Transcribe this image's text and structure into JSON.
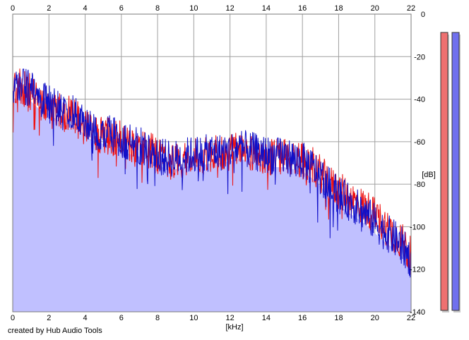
{
  "chart_data": {
    "type": "area",
    "xlabel": "[kHz]",
    "ylabel": "[dB]",
    "xlim": [
      0,
      22
    ],
    "ylim": [
      -140,
      0
    ],
    "x_ticks": [
      0,
      2,
      4,
      6,
      8,
      10,
      12,
      14,
      16,
      18,
      20,
      22
    ],
    "y_ticks": [
      0,
      -20,
      -40,
      -60,
      -80,
      -100,
      -120,
      -140
    ],
    "grid": true,
    "colors": {
      "background": "#ffffff",
      "plot_background": "#ffffff",
      "grid": "#a0a0a0",
      "area_fill": "#c0c0ff",
      "left_channel": "#ee1111",
      "right_channel": "#1010c8"
    },
    "series": [
      {
        "color": "#ee1111",
        "x": [
          0.0,
          0.5,
          1.0,
          1.5,
          2.0,
          2.5,
          3.0,
          3.5,
          4.0,
          4.5,
          5.0,
          5.5,
          6.0,
          6.5,
          7.0,
          7.5,
          8.0,
          8.5,
          9.0,
          9.5,
          10.0,
          10.5,
          11.0,
          11.5,
          12.0,
          12.5,
          13.0,
          13.5,
          14.0,
          14.5,
          15.0,
          15.5,
          16.0,
          16.5,
          17.0,
          17.5,
          18.0,
          18.5,
          19.0,
          19.5,
          20.0,
          20.5,
          21.0,
          21.5,
          22.0
        ],
        "y": [
          -36,
          -33,
          -36,
          -40,
          -42,
          -45,
          -46,
          -48,
          -52,
          -55,
          -56,
          -57,
          -58,
          -60,
          -62,
          -63,
          -66,
          -68,
          -68,
          -67,
          -66,
          -66,
          -65,
          -65,
          -64,
          -63,
          -64,
          -65,
          -66,
          -66,
          -66,
          -67,
          -68,
          -70,
          -74,
          -79,
          -82,
          -85,
          -88,
          -90,
          -94,
          -98,
          -102,
          -106,
          -113
        ]
      },
      {
        "color": "#1010c8",
        "x": [
          0.0,
          0.5,
          1.0,
          1.5,
          2.0,
          2.5,
          3.0,
          3.5,
          4.0,
          4.5,
          5.0,
          5.5,
          6.0,
          6.5,
          7.0,
          7.5,
          8.0,
          8.5,
          9.0,
          9.5,
          10.0,
          10.5,
          11.0,
          11.5,
          12.0,
          12.5,
          13.0,
          13.5,
          14.0,
          14.5,
          15.0,
          15.5,
          16.0,
          16.5,
          17.0,
          17.5,
          18.0,
          18.5,
          19.0,
          19.5,
          20.0,
          20.5,
          21.0,
          21.5,
          22.0
        ],
        "y": [
          -35,
          -32,
          -35,
          -39,
          -41,
          -44,
          -45,
          -47,
          -51,
          -54,
          -55,
          -56,
          -58,
          -60,
          -61,
          -62,
          -65,
          -67,
          -67,
          -66,
          -65,
          -65,
          -64,
          -64,
          -63,
          -62,
          -63,
          -64,
          -65,
          -66,
          -66,
          -67,
          -68,
          -71,
          -75,
          -80,
          -84,
          -87,
          -90,
          -93,
          -97,
          -101,
          -104,
          -108,
          -115
        ]
      }
    ],
    "channel_levels": [
      {
        "color": "#ee7070",
        "level": 1.0
      },
      {
        "color": "#7070ee",
        "level": 1.0
      }
    ]
  },
  "footer": {
    "credit": "created by Hub Audio Tools"
  }
}
